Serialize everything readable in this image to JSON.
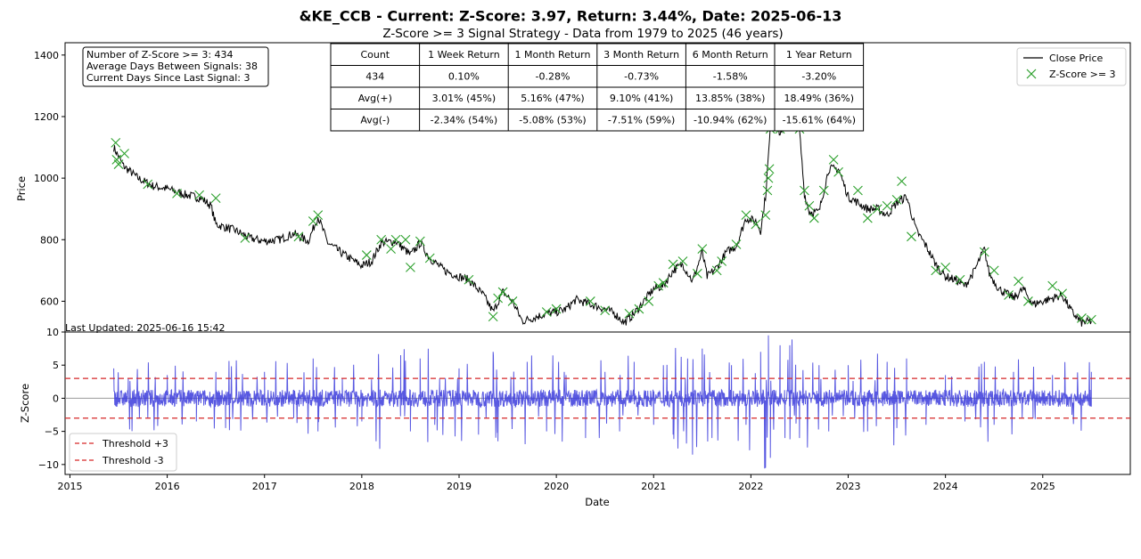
{
  "chart_data": [
    {
      "type": "line",
      "title": "&KE_CCB - Current: Z-Score: 3.97, Return: 3.44%, Date: 2025-06-13",
      "subtitle": "Z-Score >= 3 Signal Strategy - Data from 1979 to 2025 (46 years)",
      "ylabel": "Price",
      "xlim": [
        2014.95,
        2025.9
      ],
      "ylim": [
        500,
        1440
      ],
      "yticks": [
        600,
        800,
        1000,
        1200,
        1400
      ],
      "grid": false,
      "legend_position": "top-right",
      "legend": [
        {
          "label": "Close Price",
          "marker": "line",
          "color": "#000000"
        },
        {
          "label": "Z-Score >= 3",
          "marker": "x",
          "color": "#2ca02c"
        }
      ],
      "series": [
        {
          "name": "Close Price",
          "color": "#000000",
          "points": [
            [
              2015.45,
              1100
            ],
            [
              2015.55,
              1040
            ],
            [
              2015.7,
              1000
            ],
            [
              2015.85,
              975
            ],
            [
              2016.0,
              965
            ],
            [
              2016.2,
              945
            ],
            [
              2016.35,
              935
            ],
            [
              2016.45,
              910
            ],
            [
              2016.5,
              850
            ],
            [
              2016.7,
              830
            ],
            [
              2016.85,
              805
            ],
            [
              2017.0,
              795
            ],
            [
              2017.15,
              800
            ],
            [
              2017.3,
              820
            ],
            [
              2017.45,
              795
            ],
            [
              2017.55,
              875
            ],
            [
              2017.65,
              790
            ],
            [
              2017.8,
              755
            ],
            [
              2017.95,
              725
            ],
            [
              2018.0,
              715
            ],
            [
              2018.1,
              730
            ],
            [
              2018.2,
              790
            ],
            [
              2018.35,
              795
            ],
            [
              2018.5,
              750
            ],
            [
              2018.6,
              790
            ],
            [
              2018.7,
              740
            ],
            [
              2018.85,
              700
            ],
            [
              2019.0,
              680
            ],
            [
              2019.1,
              670
            ],
            [
              2019.25,
              620
            ],
            [
              2019.35,
              565
            ],
            [
              2019.45,
              630
            ],
            [
              2019.55,
              600
            ],
            [
              2019.65,
              535
            ],
            [
              2019.75,
              545
            ],
            [
              2019.9,
              560
            ],
            [
              2020.0,
              565
            ],
            [
              2020.1,
              575
            ],
            [
              2020.2,
              605
            ],
            [
              2020.35,
              590
            ],
            [
              2020.5,
              575
            ],
            [
              2020.6,
              560
            ],
            [
              2020.7,
              530
            ],
            [
              2020.8,
              560
            ],
            [
              2020.9,
              600
            ],
            [
              2021.0,
              640
            ],
            [
              2021.1,
              650
            ],
            [
              2021.2,
              700
            ],
            [
              2021.3,
              720
            ],
            [
              2021.4,
              665
            ],
            [
              2021.5,
              760
            ],
            [
              2021.55,
              680
            ],
            [
              2021.65,
              710
            ],
            [
              2021.75,
              760
            ],
            [
              2021.85,
              780
            ],
            [
              2021.95,
              870
            ],
            [
              2022.05,
              860
            ],
            [
              2022.1,
              830
            ],
            [
              2022.15,
              940
            ],
            [
              2022.2,
              1160
            ],
            [
              2022.25,
              1200
            ],
            [
              2022.3,
              1140
            ],
            [
              2022.35,
              1200
            ],
            [
              2022.4,
              1330
            ],
            [
              2022.45,
              1230
            ],
            [
              2022.5,
              1150
            ],
            [
              2022.55,
              950
            ],
            [
              2022.6,
              890
            ],
            [
              2022.7,
              890
            ],
            [
              2022.8,
              1030
            ],
            [
              2022.9,
              1030
            ],
            [
              2023.0,
              940
            ],
            [
              2023.1,
              920
            ],
            [
              2023.2,
              900
            ],
            [
              2023.3,
              900
            ],
            [
              2023.4,
              880
            ],
            [
              2023.5,
              920
            ],
            [
              2023.6,
              940
            ],
            [
              2023.7,
              830
            ],
            [
              2023.8,
              780
            ],
            [
              2023.9,
              720
            ],
            [
              2024.0,
              680
            ],
            [
              2024.1,
              670
            ],
            [
              2024.2,
              650
            ],
            [
              2024.3,
              700
            ],
            [
              2024.4,
              770
            ],
            [
              2024.45,
              690
            ],
            [
              2024.55,
              640
            ],
            [
              2024.7,
              610
            ],
            [
              2024.8,
              640
            ],
            [
              2024.9,
              590
            ],
            [
              2025.0,
              600
            ],
            [
              2025.1,
              610
            ],
            [
              2025.2,
              620
            ],
            [
              2025.3,
              565
            ],
            [
              2025.4,
              530
            ],
            [
              2025.5,
              535
            ]
          ]
        },
        {
          "name": "Z-Score >= 3",
          "color": "#2ca02c",
          "points": [
            [
              2015.47,
              1115
            ],
            [
              2015.48,
              1060
            ],
            [
              2015.5,
              1045
            ],
            [
              2015.56,
              1080
            ],
            [
              2015.8,
              980
            ],
            [
              2016.1,
              950
            ],
            [
              2016.33,
              945
            ],
            [
              2016.5,
              935
            ],
            [
              2016.8,
              805
            ],
            [
              2017.35,
              810
            ],
            [
              2017.5,
              860
            ],
            [
              2017.55,
              880
            ],
            [
              2018.05,
              750
            ],
            [
              2018.2,
              800
            ],
            [
              2018.3,
              770
            ],
            [
              2018.35,
              800
            ],
            [
              2018.45,
              800
            ],
            [
              2018.5,
              710
            ],
            [
              2018.6,
              795
            ],
            [
              2018.7,
              740
            ],
            [
              2019.1,
              670
            ],
            [
              2019.35,
              550
            ],
            [
              2019.4,
              610
            ],
            [
              2019.45,
              630
            ],
            [
              2019.55,
              600
            ],
            [
              2019.9,
              565
            ],
            [
              2020.0,
              575
            ],
            [
              2020.35,
              600
            ],
            [
              2020.5,
              570
            ],
            [
              2020.75,
              560
            ],
            [
              2020.85,
              575
            ],
            [
              2020.95,
              600
            ],
            [
              2021.05,
              650
            ],
            [
              2021.1,
              660
            ],
            [
              2021.2,
              720
            ],
            [
              2021.3,
              730
            ],
            [
              2021.45,
              690
            ],
            [
              2021.5,
              770
            ],
            [
              2021.65,
              700
            ],
            [
              2021.7,
              730
            ],
            [
              2021.85,
              785
            ],
            [
              2021.95,
              880
            ],
            [
              2022.05,
              850
            ],
            [
              2022.15,
              880
            ],
            [
              2022.17,
              960
            ],
            [
              2022.18,
              1000
            ],
            [
              2022.19,
              1030
            ],
            [
              2022.2,
              1160
            ],
            [
              2022.22,
              1260
            ],
            [
              2022.24,
              1210
            ],
            [
              2022.26,
              1190
            ],
            [
              2022.3,
              1160
            ],
            [
              2022.33,
              1200
            ],
            [
              2022.38,
              1300
            ],
            [
              2022.4,
              1390
            ],
            [
              2022.42,
              1240
            ],
            [
              2022.45,
              1210
            ],
            [
              2022.5,
              1160
            ],
            [
              2022.55,
              960
            ],
            [
              2022.6,
              910
            ],
            [
              2022.65,
              870
            ],
            [
              2022.75,
              960
            ],
            [
              2022.85,
              1060
            ],
            [
              2022.9,
              1020
            ],
            [
              2023.1,
              960
            ],
            [
              2023.2,
              870
            ],
            [
              2023.3,
              900
            ],
            [
              2023.4,
              910
            ],
            [
              2023.5,
              930
            ],
            [
              2023.55,
              990
            ],
            [
              2023.65,
              810
            ],
            [
              2023.9,
              700
            ],
            [
              2024.0,
              710
            ],
            [
              2024.15,
              670
            ],
            [
              2024.4,
              760
            ],
            [
              2024.5,
              700
            ],
            [
              2024.65,
              620
            ],
            [
              2024.75,
              665
            ],
            [
              2024.85,
              600
            ],
            [
              2025.1,
              650
            ],
            [
              2025.2,
              625
            ],
            [
              2025.4,
              545
            ],
            [
              2025.5,
              540
            ]
          ]
        }
      ],
      "annotations": {
        "stats_box": [
          "Number of Z-Score >= 3: 434",
          "Average Days Between Signals: 38",
          "Current Days Since Last Signal: 3"
        ],
        "table_header": [
          "Count",
          "1 Week Return",
          "1 Month Return",
          "3 Month Return",
          "6 Month Return",
          "1 Year Return"
        ],
        "table_rows": [
          [
            "434",
            "0.10%",
            "-0.28%",
            "-0.73%",
            "-1.58%",
            "-3.20%"
          ],
          [
            "Avg(+)",
            "3.01% (45%)",
            "5.16% (47%)",
            "9.10% (41%)",
            "13.85% (38%)",
            "18.49% (36%)"
          ],
          [
            "Avg(-)",
            "-2.34% (54%)",
            "-5.08% (53%)",
            "-7.51% (59%)",
            "-10.94% (62%)",
            "-15.61% (64%)"
          ]
        ],
        "last_updated": "Last Updated: 2025-06-16 15:42"
      }
    },
    {
      "type": "line",
      "xlabel": "Date",
      "ylabel": "Z-Score",
      "xlim": [
        2014.95,
        2025.9
      ],
      "ylim": [
        -11.5,
        10
      ],
      "yticks": [
        -10,
        -5,
        0,
        5,
        10
      ],
      "xticks": [
        "2015",
        "2016",
        "2017",
        "2018",
        "2019",
        "2020",
        "2021",
        "2022",
        "2023",
        "2024",
        "2025"
      ],
      "x_start": 2015.45,
      "x_end": 2025.5,
      "thresholds": [
        {
          "label": "Threshold +3",
          "value": 3,
          "color": "#d62728"
        },
        {
          "label": "Threshold -3",
          "value": -3,
          "color": "#d62728"
        }
      ],
      "legend_position": "bottom-left",
      "series": [
        {
          "name": "Z-Score",
          "color": "#3b3bdc",
          "points": [
            [
              2015.45,
              4.5
            ],
            [
              2015.46,
              -1
            ],
            [
              2015.6,
              3
            ],
            [
              2015.8,
              -3
            ],
            [
              2016.0,
              3.5
            ],
            [
              2016.3,
              -3.5
            ],
            [
              2016.5,
              4
            ],
            [
              2016.6,
              -4.5
            ],
            [
              2017.0,
              4
            ],
            [
              2017.3,
              -3
            ],
            [
              2017.5,
              6
            ],
            [
              2017.55,
              -5
            ],
            [
              2017.8,
              3
            ],
            [
              2018.0,
              -3.5
            ],
            [
              2018.4,
              6.5
            ],
            [
              2018.5,
              -5
            ],
            [
              2018.6,
              6
            ],
            [
              2018.75,
              -4
            ],
            [
              2019.0,
              4.5
            ],
            [
              2019.2,
              -5.5
            ],
            [
              2019.35,
              7
            ],
            [
              2019.4,
              -6.5
            ],
            [
              2019.7,
              5.5
            ],
            [
              2019.9,
              -5
            ],
            [
              2020.1,
              3.5
            ],
            [
              2020.3,
              -6
            ],
            [
              2020.5,
              4
            ],
            [
              2020.65,
              -5
            ],
            [
              2020.8,
              5.5
            ],
            [
              2021.0,
              -4
            ],
            [
              2021.1,
              5
            ],
            [
              2021.2,
              -5.5
            ],
            [
              2021.35,
              6
            ],
            [
              2021.4,
              -8.5
            ],
            [
              2021.5,
              7.5
            ],
            [
              2021.6,
              -6
            ],
            [
              2021.8,
              5
            ],
            [
              2021.95,
              -4
            ],
            [
              2022.1,
              7
            ],
            [
              2022.15,
              -10.5
            ],
            [
              2022.18,
              9.5
            ],
            [
              2022.2,
              -9
            ],
            [
              2022.3,
              8
            ],
            [
              2022.35,
              -6
            ],
            [
              2022.4,
              8
            ],
            [
              2022.5,
              -6
            ],
            [
              2022.7,
              5
            ],
            [
              2022.8,
              -5
            ],
            [
              2023.0,
              5
            ],
            [
              2023.2,
              -5
            ],
            [
              2023.4,
              5.5
            ],
            [
              2023.5,
              -4.5
            ],
            [
              2023.6,
              6
            ],
            [
              2023.8,
              -4
            ],
            [
              2024.0,
              3.5
            ],
            [
              2024.2,
              -3.5
            ],
            [
              2024.4,
              5.5
            ],
            [
              2024.5,
              -4
            ],
            [
              2024.7,
              4
            ],
            [
              2024.9,
              -3
            ],
            [
              2025.1,
              3.5
            ],
            [
              2025.3,
              -2.5
            ],
            [
              2025.5,
              4
            ]
          ]
        }
      ]
    }
  ]
}
